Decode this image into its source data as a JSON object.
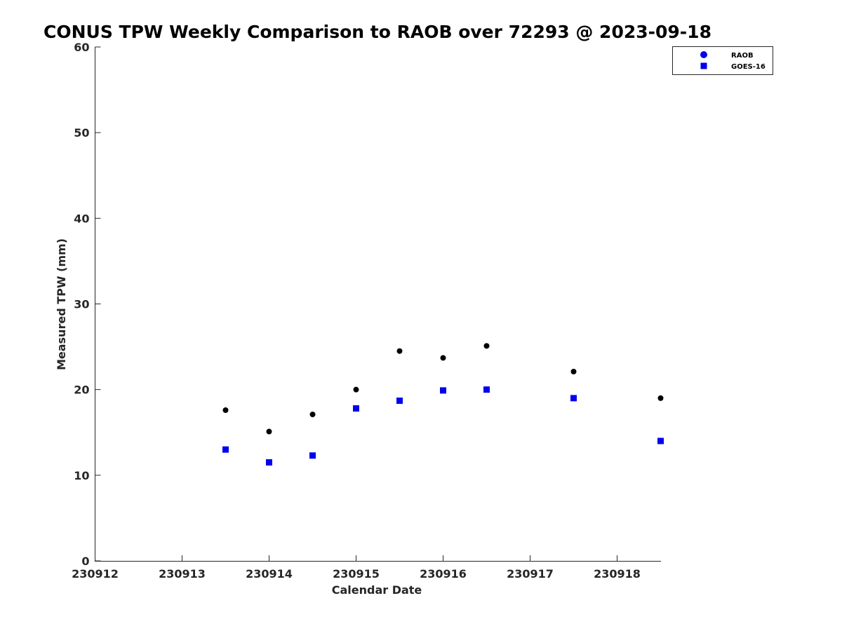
{
  "chart_data": {
    "type": "scatter",
    "title": "CONUS TPW Weekly Comparison to RAOB over 72293 @ 2023-09-18",
    "xlabel": "Calendar Date",
    "ylabel": "Measured TPW (mm)",
    "xlim": [
      230912,
      230918.5
    ],
    "ylim": [
      0,
      60
    ],
    "xticks": [
      230912,
      230913,
      230914,
      230915,
      230916,
      230917,
      230918
    ],
    "xtick_labels": [
      "230912",
      "230913",
      "230914",
      "230915",
      "230916",
      "230917",
      "230918"
    ],
    "yticks": [
      0,
      10,
      20,
      30,
      40,
      50,
      60
    ],
    "ytick_labels": [
      "0",
      "10",
      "20",
      "30",
      "40",
      "50",
      "60"
    ],
    "grid": false,
    "legend_position": "top-right",
    "series": [
      {
        "name": "RAOB",
        "marker": "circle",
        "color": "#000000",
        "legend_color": "#0000ee",
        "x": [
          230913.5,
          230914,
          230914.5,
          230915,
          230915.5,
          230916,
          230916.5,
          230917.5,
          230918.5
        ],
        "y": [
          17.6,
          15.1,
          17.1,
          20.0,
          24.5,
          23.7,
          25.1,
          22.1,
          19.0
        ]
      },
      {
        "name": "GOES-16",
        "marker": "square",
        "color": "#0000ee",
        "legend_color": "#0000ee",
        "x": [
          230913.5,
          230914,
          230914.5,
          230915,
          230915.5,
          230916,
          230916.5,
          230917.5,
          230918.5
        ],
        "y": [
          13.0,
          11.5,
          12.3,
          17.8,
          18.7,
          19.9,
          20.0,
          19.0,
          14.0
        ]
      }
    ]
  }
}
